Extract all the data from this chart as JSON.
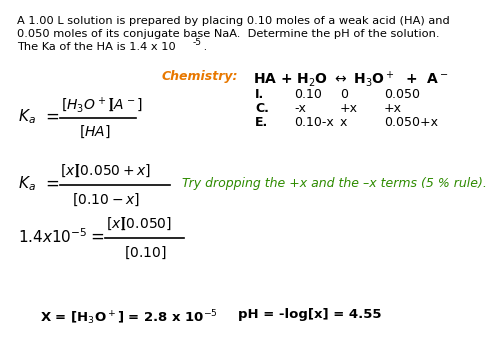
{
  "background_color": "#ffffff",
  "text_color": "#000000",
  "orange_color": "#e87800",
  "green_color": "#2e8b00",
  "line1": "A 1.00 L solution is prepared by placing 0.10 moles of a weak acid (HA) and",
  "line2": "0.050 moles of its conjugate base NaA.  Determine the pH of the solution.",
  "line3a": "The Ka of the HA is 1.4 x 10",
  "line3b": "-5",
  "line3c": " .",
  "hint_text": "Try dropping the +x and the –x terms (5 % rule).",
  "result_x": "X = [H",
  "result_ph": "pH = -log[x] = 4.55",
  "fontsize_small": 8.2,
  "fontsize_med": 9.5,
  "fontsize_math": 10.5
}
